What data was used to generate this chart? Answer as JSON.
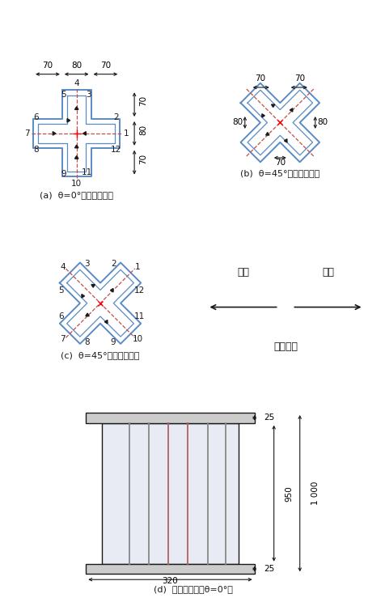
{
  "blue": "#5B8BC5",
  "red": "#C0504D",
  "dark": "#1A1A1A",
  "gray": "#888888",
  "plate_gray": "#CCCCCC",
  "caption_a": "(a)  θ=0°（有加劲肋）",
  "caption_b": "(b)  θ=45°（无加劲肋）",
  "caption_c": "(c)  θ=45°（有加劲肋）",
  "caption_d": "(d)  立面示意图（θ=0°）",
  "dir_pos": "正向",
  "dir_neg": "负向",
  "dir_load": "加载方向",
  "dim_70": "70",
  "dim_80": "80",
  "dim_25": "25",
  "dim_950": "950",
  "dim_1000": "1 000",
  "dim_320": "320"
}
